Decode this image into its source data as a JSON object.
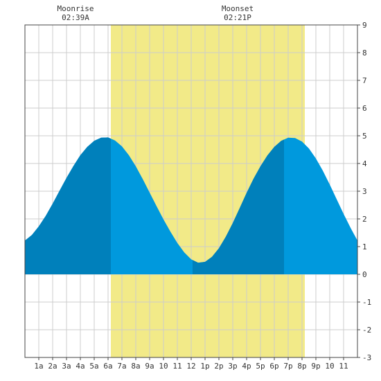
{
  "chart_data": {
    "type": "area",
    "title": "",
    "xlabel": "",
    "ylabel": "",
    "x_range_hours": [
      0,
      24
    ],
    "ylim": [
      -3,
      9
    ],
    "yticks": [
      -3,
      -2,
      -1,
      0,
      1,
      2,
      3,
      4,
      5,
      6,
      7,
      8,
      9
    ],
    "xtick_labels": [
      "1a",
      "2a",
      "3a",
      "4a",
      "5a",
      "6a",
      "7a",
      "8a",
      "9a",
      "10",
      "11",
      "12",
      "1p",
      "2p",
      "3p",
      "4p",
      "5p",
      "6p",
      "7p",
      "8p",
      "9p",
      "10",
      "11"
    ],
    "grid": true,
    "daylight": {
      "start_hour": 6.2,
      "end_hour": 20.2
    },
    "tide_series": {
      "x": [
        0,
        0.5,
        1,
        1.5,
        2,
        2.5,
        3,
        3.5,
        4,
        4.5,
        5,
        5.5,
        6,
        6.5,
        7,
        7.5,
        8,
        8.5,
        9,
        9.5,
        10,
        10.5,
        11,
        11.5,
        12,
        12.5,
        13,
        13.5,
        14,
        14.5,
        15,
        15.5,
        16,
        16.5,
        17,
        17.5,
        18,
        18.5,
        19,
        19.5,
        20,
        20.5,
        21,
        21.5,
        22,
        22.5,
        23,
        23.5,
        24
      ],
      "y": [
        1.22,
        1.42,
        1.73,
        2.11,
        2.55,
        3.02,
        3.48,
        3.91,
        4.3,
        4.6,
        4.82,
        4.93,
        4.94,
        4.83,
        4.62,
        4.3,
        3.9,
        3.44,
        2.95,
        2.46,
        1.98,
        1.54,
        1.13,
        0.79,
        0.54,
        0.42,
        0.45,
        0.63,
        0.94,
        1.36,
        1.85,
        2.39,
        2.94,
        3.45,
        3.9,
        4.29,
        4.6,
        4.82,
        4.93,
        4.92,
        4.79,
        4.54,
        4.18,
        3.74,
        3.24,
        2.71,
        2.18,
        1.68,
        1.22
      ]
    },
    "dark_segments_hours": [
      [
        0,
        6.2
      ],
      [
        12.1,
        18.7
      ]
    ],
    "annotations": [
      {
        "label": "Moonrise",
        "time": "02:39A",
        "hour": 3.65
      },
      {
        "label": "Moonset",
        "time": "02:21P",
        "hour": 15.35
      }
    ],
    "colors": {
      "daylight": "#f2ea88",
      "water_light": "#0099dd",
      "water_dark": "#0080bb",
      "grid": "#cccccc",
      "axis": "#444444",
      "text": "#333333"
    }
  }
}
